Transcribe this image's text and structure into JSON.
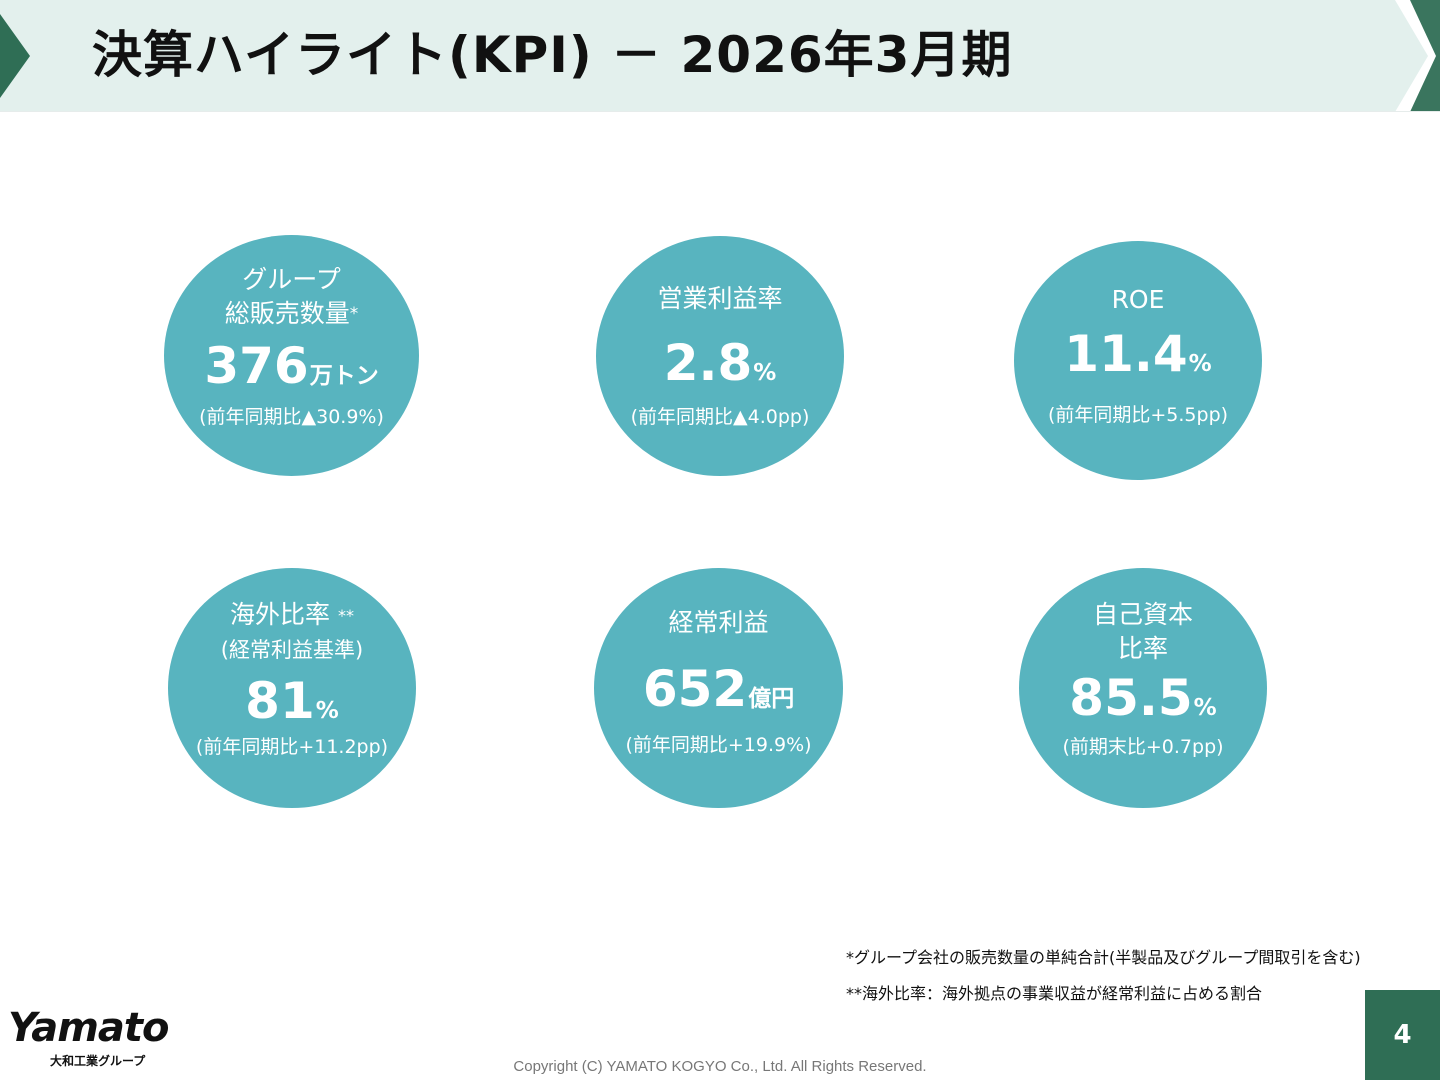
{
  "header": {
    "title": "決算ハイライト(KPI) － 2026年3月期"
  },
  "colors": {
    "circle": "#58b4bf",
    "header_band": "#e3f0ed",
    "header_accent": "#2f6e55",
    "page_badge": "#2f6e55"
  },
  "kpis": [
    {
      "label_line1": "グループ",
      "label_line2": "総販売数量",
      "footnote_mark": "*",
      "value": "376",
      "unit": "万トン",
      "comparison": "(前年同期比▲30.9%)"
    },
    {
      "label_line1": "営業利益率",
      "value": "2.8",
      "unit": "%",
      "comparison": "(前年同期比▲4.0pp)"
    },
    {
      "label_line1": "ROE",
      "value": "11.4",
      "unit": "%",
      "comparison": "(前年同期比+5.5pp)"
    },
    {
      "label_line1": "海外比率",
      "footnote_mark": "**",
      "label_line2": "(経常利益基準)",
      "value": "81",
      "unit": "%",
      "comparison": "(前年同期比+11.2pp)"
    },
    {
      "label_line1": "経常利益",
      "value": "652",
      "unit": "億円",
      "comparison": "(前年同期比+19.9%)"
    },
    {
      "label_line1": "自己資本",
      "label_line2": "比率",
      "value": "85.5",
      "unit": "%",
      "comparison": "(前期末比+0.7pp)"
    }
  ],
  "footnotes": [
    "*グループ会社の販売数量の単純合計(半製品及びグループ間取引を含む)",
    "**海外比率：海外拠点の事業収益が経常利益に占める割合"
  ],
  "footer": {
    "logo_text": "Yamato",
    "logo_sub": "大和工業グループ",
    "copyright": "Copyright (C) YAMATO KOGYO Co., Ltd. All Rights Reserved.",
    "page_number": "4"
  }
}
